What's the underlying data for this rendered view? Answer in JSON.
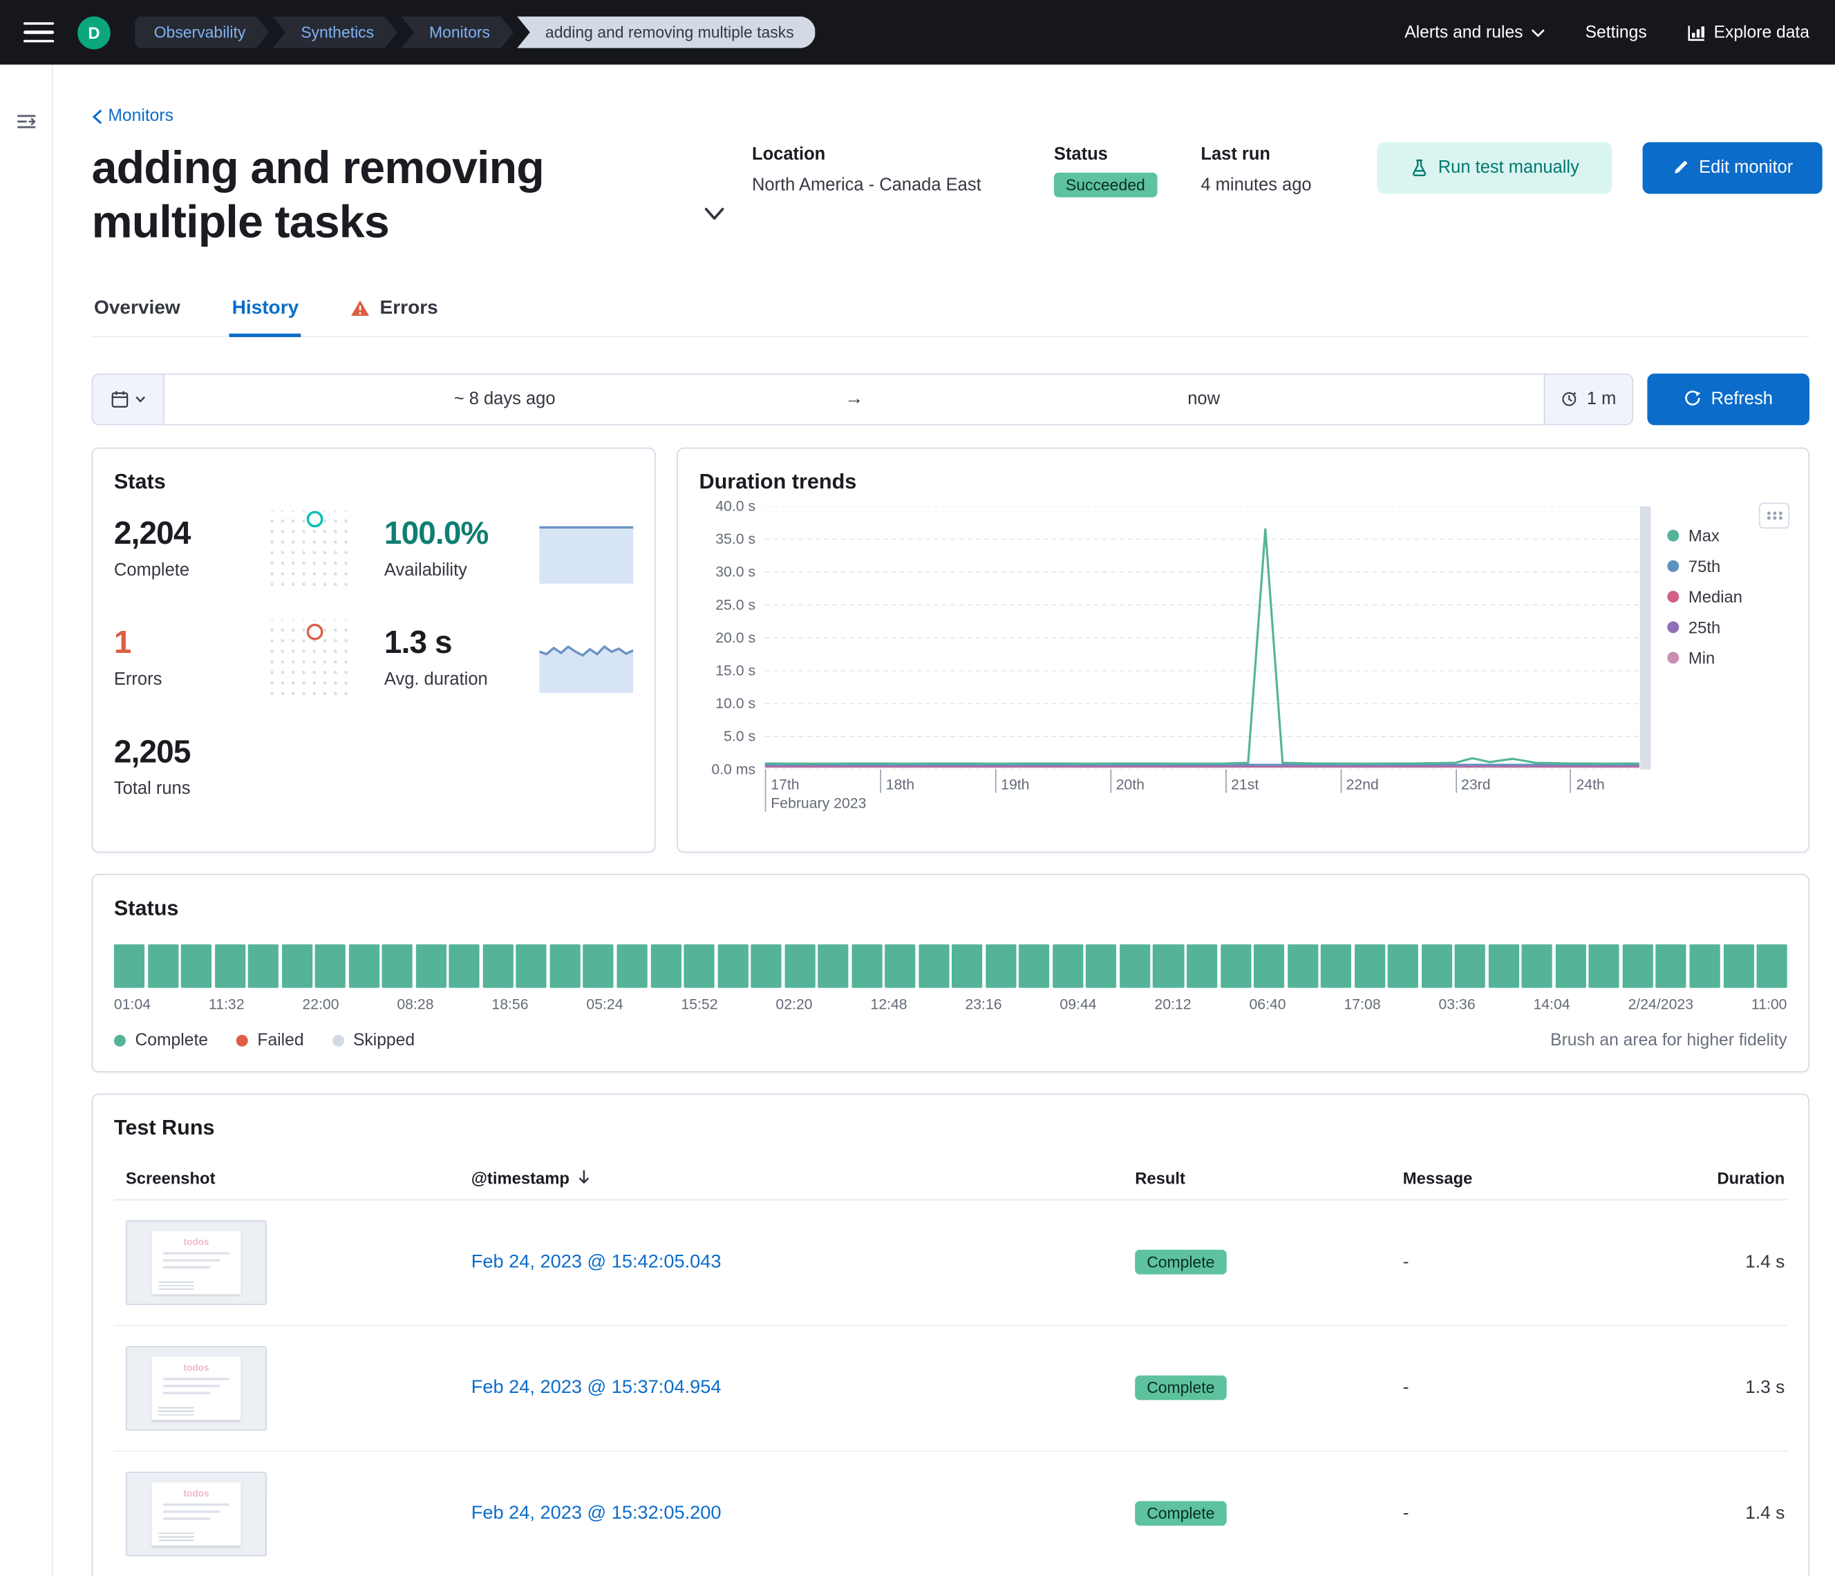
{
  "colors": {
    "header_bg": "#16171d",
    "accent": "#0b6cca",
    "avatar_bg": "#0aa77d",
    "success": "#54B399",
    "badge_bg": "#5dc29d",
    "badge_text": "#0a2e24",
    "danger": "#dd5e43",
    "teal_btn_bg": "#daf5f1",
    "teal_btn_text": "#00796f"
  },
  "header": {
    "avatar": "D",
    "breadcrumbs": [
      "Observability",
      "Synthetics",
      "Monitors",
      "adding and removing multiple tasks"
    ],
    "nav": {
      "alerts": "Alerts and rules",
      "settings": "Settings",
      "explore": "Explore data"
    }
  },
  "page": {
    "back_link": "Monitors",
    "title": "adding and removing multiple tasks",
    "meta": {
      "location_label": "Location",
      "location_value": "North America - Canada East",
      "status_label": "Status",
      "status_value": "Succeeded",
      "last_run_label": "Last run",
      "last_run_value": "4 minutes ago"
    },
    "actions": {
      "run_test": "Run test manually",
      "edit_monitor": "Edit monitor"
    },
    "tabs": [
      {
        "label": "Overview",
        "active": false,
        "warning": false
      },
      {
        "label": "History",
        "active": true,
        "warning": false
      },
      {
        "label": "Errors",
        "active": false,
        "warning": true
      }
    ]
  },
  "datepicker": {
    "start": "~ 8 days ago",
    "end": "now",
    "interval": "1 m",
    "refresh": "Refresh"
  },
  "stats": {
    "title": "Stats",
    "complete": {
      "value": "2,204",
      "label": "Complete"
    },
    "availability": {
      "value": "100.0%",
      "label": "Availability"
    },
    "errors": {
      "value": "1",
      "label": "Errors"
    },
    "avg_duration": {
      "value": "1.3 s",
      "label": "Avg. duration"
    },
    "total_runs": {
      "value": "2,205",
      "label": "Total runs"
    }
  },
  "chart_data": [
    {
      "id": "duration-trends",
      "type": "line",
      "title": "Duration trends",
      "xlabel": "February 2023",
      "x_ticks": [
        "17th",
        "18th",
        "19th",
        "20th",
        "21st",
        "22nd",
        "23rd",
        "24th"
      ],
      "x_domain_days": [
        17,
        24.7
      ],
      "y_ticks": [
        "0.0 ms",
        "5.0 s",
        "10.0 s",
        "15.0 s",
        "20.0 s",
        "25.0 s",
        "30.0 s",
        "35.0 s",
        "40.0 s"
      ],
      "ylim_seconds": [
        0,
        40
      ],
      "grid": "dashed-horizontal",
      "legend_position": "right",
      "series": [
        {
          "name": "Max",
          "color": "#54B399",
          "points": [
            [
              17,
              0.9
            ],
            [
              17.4,
              0.86
            ],
            [
              17.8,
              0.9
            ],
            [
              18.2,
              0.87
            ],
            [
              18.6,
              0.9
            ],
            [
              19,
              0.88
            ],
            [
              19.4,
              0.9
            ],
            [
              19.8,
              0.87
            ],
            [
              20.2,
              0.9
            ],
            [
              20.6,
              0.88
            ],
            [
              21,
              0.9
            ],
            [
              21.2,
              1.0
            ],
            [
              21.35,
              36.5
            ],
            [
              21.5,
              1.0
            ],
            [
              21.8,
              0.9
            ],
            [
              22.2,
              0.88
            ],
            [
              22.6,
              0.9
            ],
            [
              23,
              1.0
            ],
            [
              23.15,
              1.7
            ],
            [
              23.3,
              1.1
            ],
            [
              23.5,
              1.6
            ],
            [
              23.7,
              1.0
            ],
            [
              24,
              0.9
            ],
            [
              24.3,
              0.88
            ],
            [
              24.6,
              0.9
            ]
          ]
        },
        {
          "name": "75th",
          "color": "#6092C0",
          "points": [
            [
              17,
              0.7
            ],
            [
              24.6,
              0.7
            ]
          ]
        },
        {
          "name": "Median",
          "color": "#D36086",
          "points": [
            [
              17,
              0.58
            ],
            [
              24.6,
              0.58
            ]
          ]
        },
        {
          "name": "25th",
          "color": "#9170B8",
          "points": [
            [
              17,
              0.48
            ],
            [
              24.6,
              0.48
            ]
          ]
        },
        {
          "name": "Min",
          "color": "#CA8EAE",
          "points": [
            [
              17,
              0.4
            ],
            [
              24.6,
              0.4
            ]
          ]
        }
      ]
    },
    {
      "id": "status-timeline",
      "type": "bar",
      "title": "Status",
      "bar_count": 50,
      "uniform_status": "Complete",
      "bar_color": "#54B399",
      "x_tick_labels": [
        "01:04",
        "11:32",
        "22:00",
        "08:28",
        "18:56",
        "05:24",
        "15:52",
        "02:20",
        "12:48",
        "23:16",
        "09:44",
        "20:12",
        "06:40",
        "17:08",
        "03:36",
        "14:04",
        "2/24/2023",
        "11:00"
      ]
    },
    {
      "id": "availability-sparkline",
      "type": "area",
      "values_pct": [
        100,
        100,
        100,
        100,
        100,
        100,
        100,
        100,
        100,
        100,
        100,
        100
      ]
    },
    {
      "id": "duration-sparkline",
      "type": "area",
      "values_s": [
        1.3,
        1.2,
        1.45,
        1.25,
        1.5,
        1.3,
        1.15,
        1.4,
        1.2,
        1.5,
        1.3,
        1.42,
        1.22,
        1.35
      ]
    }
  ],
  "status_panel": {
    "title": "Status",
    "legend": [
      {
        "label": "Complete",
        "color": "#54B399"
      },
      {
        "label": "Failed",
        "color": "#dd5e43"
      },
      {
        "label": "Skipped",
        "color": "#d3dae6"
      }
    ],
    "hint": "Brush an area for higher fidelity"
  },
  "test_runs": {
    "title": "Test Runs",
    "columns": [
      "Screenshot",
      "@timestamp",
      "Result",
      "Message",
      "Duration"
    ],
    "thumbnail_label": "todos",
    "rows": [
      {
        "timestamp": "Feb 24, 2023 @ 15:42:05.043",
        "result": "Complete",
        "message": "-",
        "duration": "1.4 s"
      },
      {
        "timestamp": "Feb 24, 2023 @ 15:37:04.954",
        "result": "Complete",
        "message": "-",
        "duration": "1.3 s"
      },
      {
        "timestamp": "Feb 24, 2023 @ 15:32:05.200",
        "result": "Complete",
        "message": "-",
        "duration": "1.4 s"
      }
    ]
  }
}
